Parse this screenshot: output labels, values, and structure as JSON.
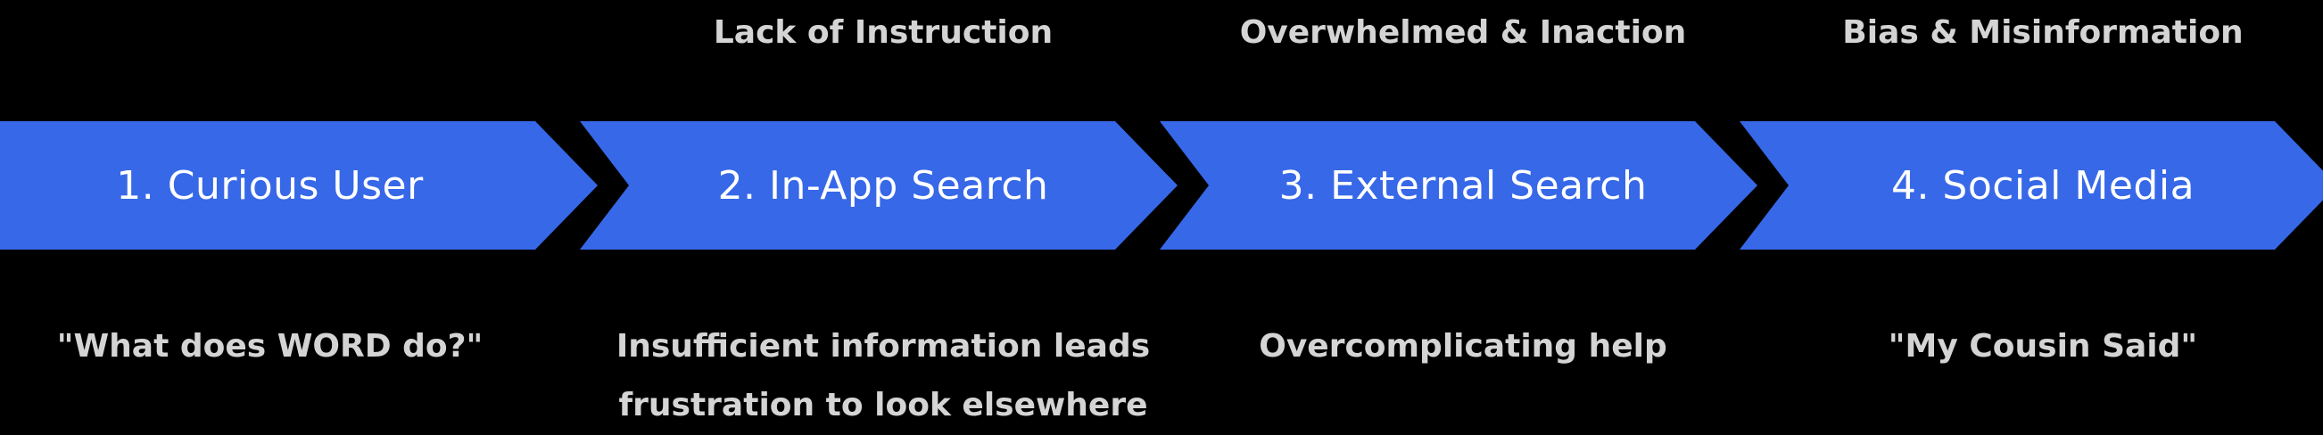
{
  "colors": {
    "background": "#000000",
    "chevron_fill": "#3768e8",
    "step_text": "#ffffff",
    "annotation_text": "#d4d4d4"
  },
  "steps": [
    {
      "label": "1. Curious User",
      "top_note": "",
      "bottom_lines": [
        "\"What does WORD do?\""
      ]
    },
    {
      "label": "2. In-App Search",
      "top_note": "Lack of Instruction",
      "bottom_lines": [
        "Insufficient information leads",
        "frustration to look elsewhere"
      ]
    },
    {
      "label": "3. External Search",
      "top_note": "Overwhelmed & Inaction",
      "bottom_lines": [
        "Overcomplicating help"
      ]
    },
    {
      "label": "4. Social Media",
      "top_note": "Bias & Misinformation",
      "bottom_lines": [
        "\"My Cousin Said\""
      ]
    }
  ]
}
